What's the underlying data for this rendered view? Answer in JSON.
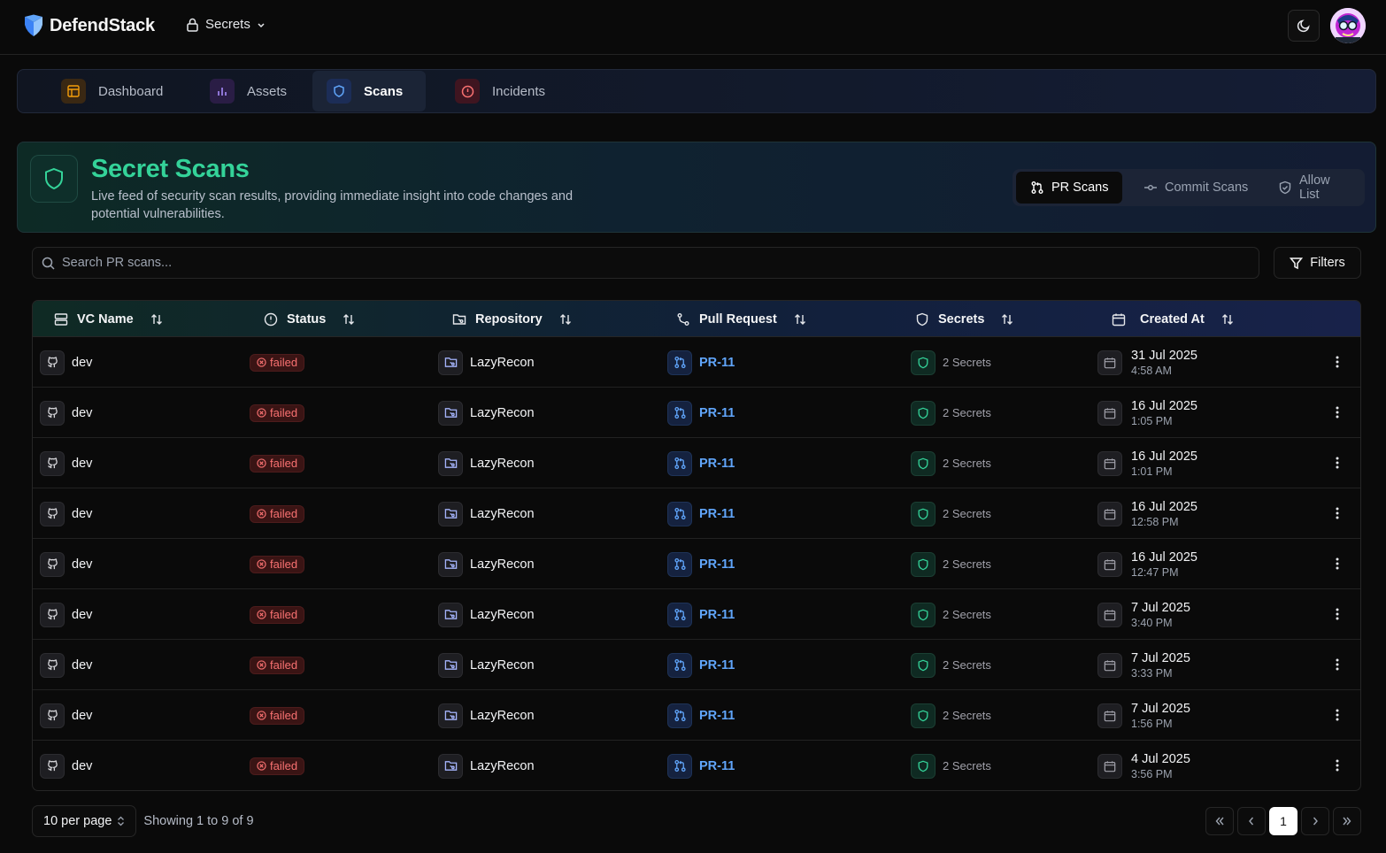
{
  "header": {
    "brand": "DefendStack",
    "module": "Secrets"
  },
  "nav": {
    "tabs": [
      {
        "label": "Dashboard",
        "icon": "layout-icon",
        "active": false
      },
      {
        "label": "Assets",
        "icon": "bar-chart-icon",
        "active": false
      },
      {
        "label": "Scans",
        "icon": "shield-icon",
        "active": true
      },
      {
        "label": "Incidents",
        "icon": "alert-circle-icon",
        "active": false
      }
    ]
  },
  "hero": {
    "title": "Secret Scans",
    "subtitle": "Live feed of security scan results, providing immediate insight into code changes and potential vulnerabilities.",
    "segments": [
      "PR Scans",
      "Commit Scans",
      "Allow List"
    ]
  },
  "search": {
    "placeholder": "Search PR scans..."
  },
  "filters_label": "Filters",
  "table": {
    "columns": [
      "VC Name",
      "Status",
      "Repository",
      "Pull Request",
      "Secrets",
      "Created At"
    ],
    "rows": [
      {
        "vc": "dev",
        "status": "failed",
        "repo": "LazyRecon",
        "pr": "PR-11",
        "secrets": "2 Secrets",
        "date": "31 Jul 2025",
        "time": "4:58 AM"
      },
      {
        "vc": "dev",
        "status": "failed",
        "repo": "LazyRecon",
        "pr": "PR-11",
        "secrets": "2 Secrets",
        "date": "16 Jul 2025",
        "time": "1:05 PM"
      },
      {
        "vc": "dev",
        "status": "failed",
        "repo": "LazyRecon",
        "pr": "PR-11",
        "secrets": "2 Secrets",
        "date": "16 Jul 2025",
        "time": "1:01 PM"
      },
      {
        "vc": "dev",
        "status": "failed",
        "repo": "LazyRecon",
        "pr": "PR-11",
        "secrets": "2 Secrets",
        "date": "16 Jul 2025",
        "time": "12:58 PM"
      },
      {
        "vc": "dev",
        "status": "failed",
        "repo": "LazyRecon",
        "pr": "PR-11",
        "secrets": "2 Secrets",
        "date": "16 Jul 2025",
        "time": "12:47 PM"
      },
      {
        "vc": "dev",
        "status": "failed",
        "repo": "LazyRecon",
        "pr": "PR-11",
        "secrets": "2 Secrets",
        "date": "7 Jul 2025",
        "time": "3:40 PM"
      },
      {
        "vc": "dev",
        "status": "failed",
        "repo": "LazyRecon",
        "pr": "PR-11",
        "secrets": "2 Secrets",
        "date": "7 Jul 2025",
        "time": "3:33 PM"
      },
      {
        "vc": "dev",
        "status": "failed",
        "repo": "LazyRecon",
        "pr": "PR-11",
        "secrets": "2 Secrets",
        "date": "7 Jul 2025",
        "time": "1:56 PM"
      },
      {
        "vc": "dev",
        "status": "failed",
        "repo": "LazyRecon",
        "pr": "PR-11",
        "secrets": "2 Secrets",
        "date": "4 Jul 2025",
        "time": "3:56 PM"
      }
    ]
  },
  "pagination": {
    "per_page": "10 per page",
    "showing": "Showing 1 to 9 of 9",
    "current_page": "1"
  },
  "colors": {
    "accent_green": "#34d399",
    "link_blue": "#60a5fa",
    "failed_red": "#f87171"
  }
}
